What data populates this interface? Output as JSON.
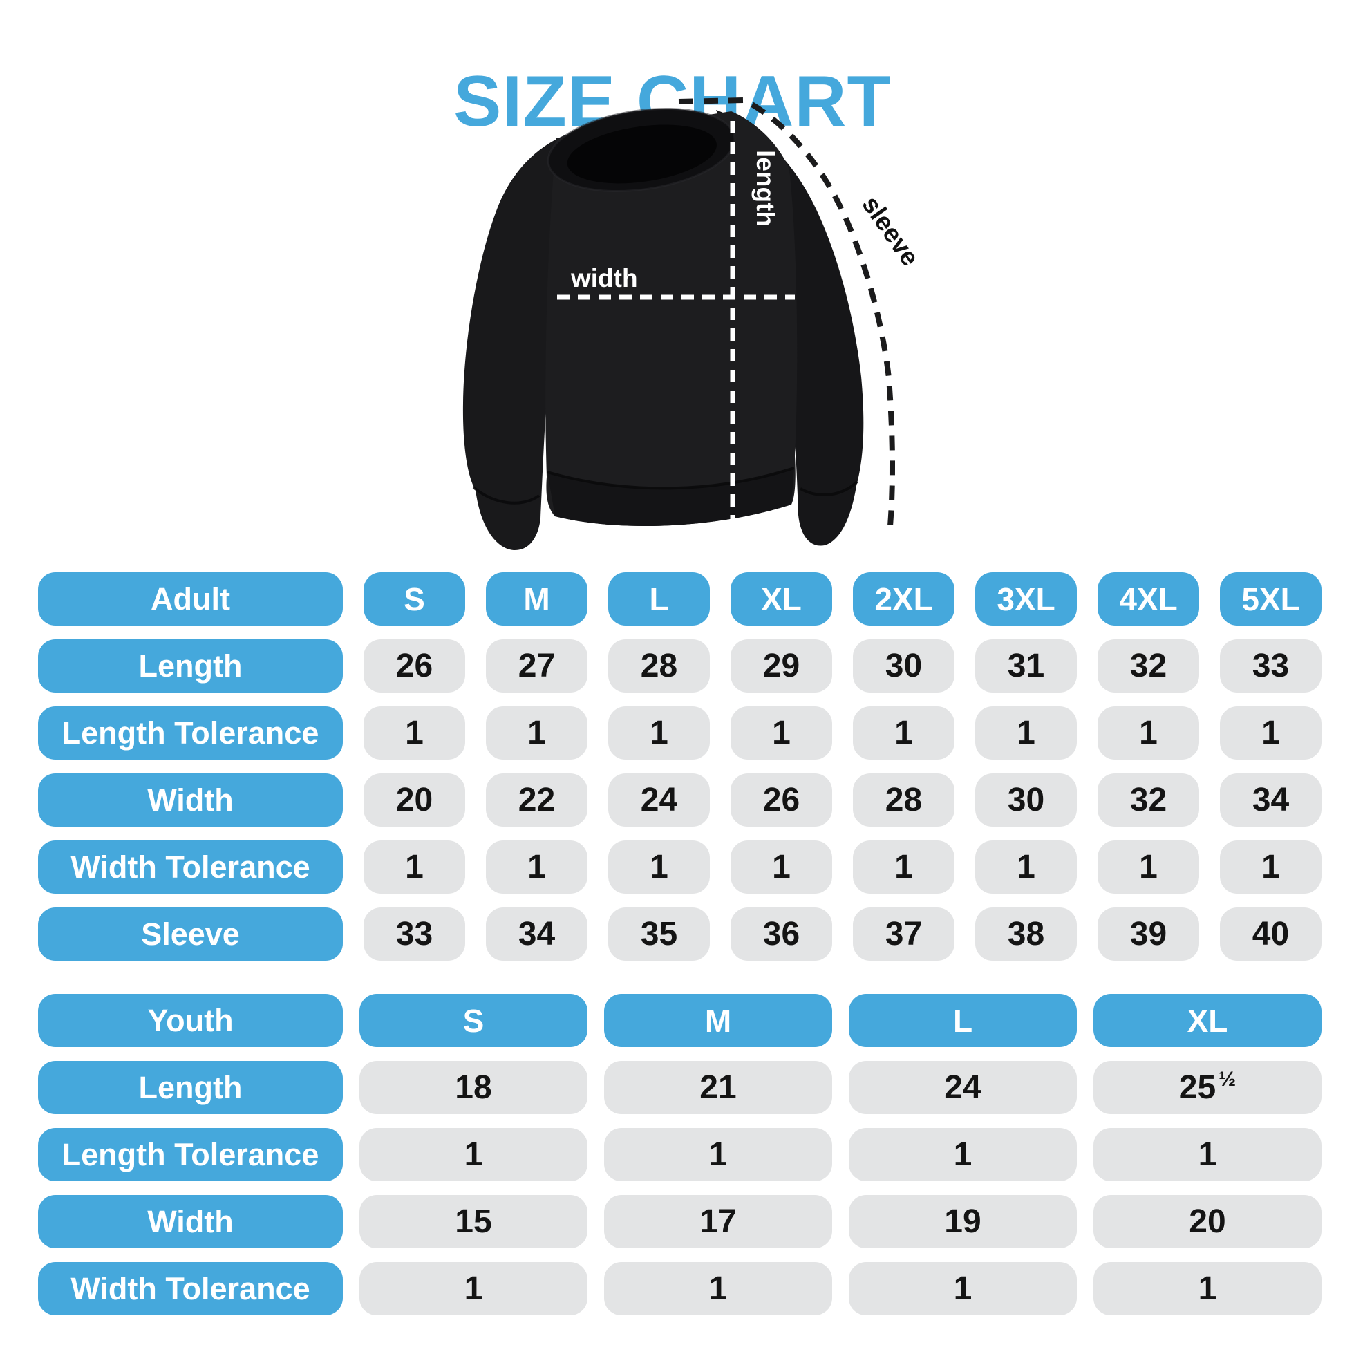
{
  "title": "SIZE CHART",
  "colors": {
    "accent_blue": "#45A8DC",
    "cell_gray": "#E3E4E5",
    "number_text": "#141414",
    "garment_black": "#1b1b1d"
  },
  "diagram": {
    "garment": "crewneck-sweatshirt",
    "labels": {
      "length": "length",
      "width": "width",
      "sleeve": "sleeve"
    }
  },
  "adult_table": {
    "header": {
      "label": "Adult",
      "sizes": [
        "S",
        "M",
        "L",
        "XL",
        "2XL",
        "3XL",
        "4XL",
        "5XL"
      ]
    },
    "rows": [
      {
        "label": "Length",
        "values": [
          "26",
          "27",
          "28",
          "29",
          "30",
          "31",
          "32",
          "33"
        ]
      },
      {
        "label": "Length Tolerance",
        "values": [
          "1",
          "1",
          "1",
          "1",
          "1",
          "1",
          "1",
          "1"
        ]
      },
      {
        "label": "Width",
        "values": [
          "20",
          "22",
          "24",
          "26",
          "28",
          "30",
          "32",
          "34"
        ]
      },
      {
        "label": "Width Tolerance",
        "values": [
          "1",
          "1",
          "1",
          "1",
          "1",
          "1",
          "1",
          "1"
        ]
      },
      {
        "label": "Sleeve",
        "values": [
          "33",
          "34",
          "35",
          "36",
          "37",
          "38",
          "39",
          "40"
        ]
      }
    ]
  },
  "youth_table": {
    "header": {
      "label": "Youth",
      "sizes": [
        "S",
        "M",
        "L",
        "XL"
      ]
    },
    "rows": [
      {
        "label": "Length",
        "values": [
          "18",
          "21",
          "24",
          "25½"
        ]
      },
      {
        "label": "Length Tolerance",
        "values": [
          "1",
          "1",
          "1",
          "1"
        ]
      },
      {
        "label": "Width",
        "values": [
          "15",
          "17",
          "19",
          "20"
        ]
      },
      {
        "label": "Width Tolerance",
        "values": [
          "1",
          "1",
          "1",
          "1"
        ]
      }
    ]
  }
}
